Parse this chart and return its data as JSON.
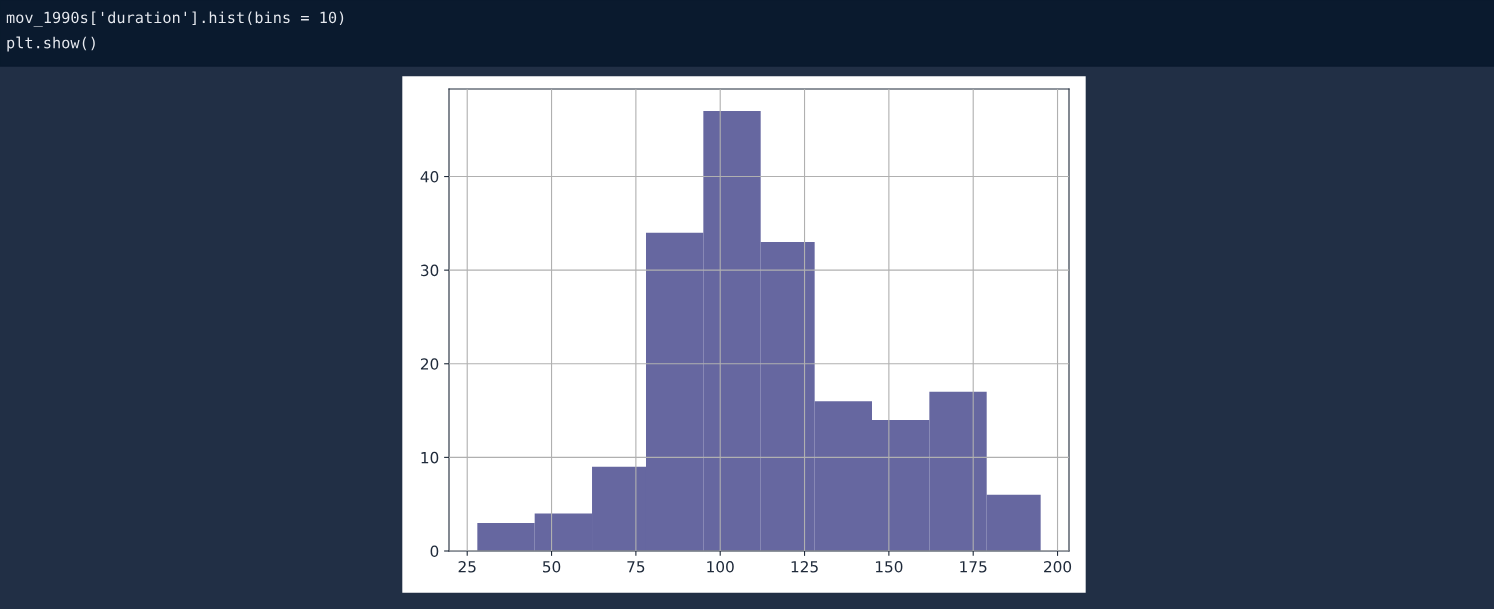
{
  "chart_data": {
    "type": "histogram",
    "annotations": [
      "mov_1990s['duration'].hist(bins = 10)",
      "plt.show()"
    ],
    "bins": [
      28,
      45,
      62,
      78,
      95,
      112,
      128,
      145,
      162,
      179,
      195
    ],
    "values": [
      3,
      4,
      9,
      34,
      47,
      33,
      16,
      14,
      17,
      6
    ],
    "color": "#6667a0",
    "xlim": [
      19.6,
      203.4
    ],
    "ylim": [
      0,
      49.35
    ],
    "xticks": [
      25,
      50,
      75,
      100,
      125,
      150,
      175,
      200
    ],
    "yticks": [
      0,
      10,
      20,
      30,
      40
    ],
    "grid": true
  }
}
